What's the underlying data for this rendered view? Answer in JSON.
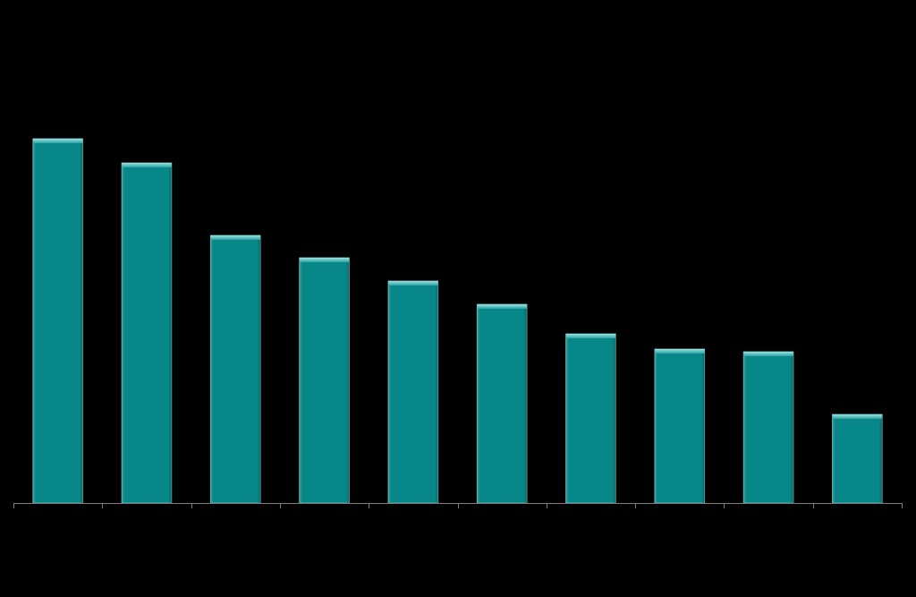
{
  "chart_data": {
    "type": "bar",
    "categories": [
      null,
      null,
      null,
      null,
      null,
      null,
      null,
      null,
      null,
      null
    ],
    "values": [
      407,
      380,
      299,
      274,
      248,
      222,
      189,
      172,
      169,
      99
    ],
    "color": "#078787",
    "ylim": [
      0,
      500
    ]
  }
}
